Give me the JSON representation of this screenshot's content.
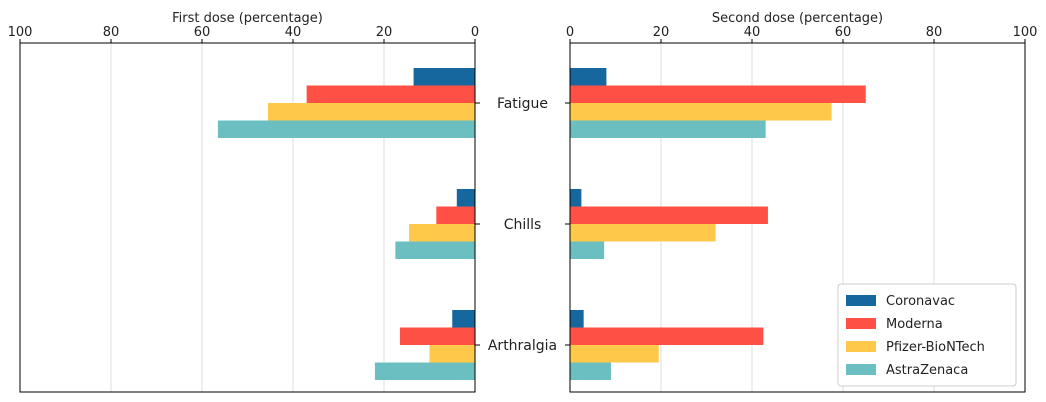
{
  "chart_data": {
    "type": "bar",
    "orientation": "horizontal",
    "categories": [
      "Fatigue",
      "Chills",
      "Arthralgia"
    ],
    "series": [
      {
        "name": "Coronavac",
        "color": "#15679e",
        "first_dose": [
          13.5,
          4.0,
          5.0
        ],
        "second_dose": [
          8.0,
          2.5,
          3.0
        ]
      },
      {
        "name": "Moderna",
        "color": "#ff5046",
        "first_dose": [
          37.0,
          8.5,
          16.5
        ],
        "second_dose": [
          65.0,
          43.5,
          42.5
        ]
      },
      {
        "name": "Pfizer-BioNTech",
        "color": "#fec94a",
        "first_dose": [
          45.5,
          14.5,
          10.0
        ],
        "second_dose": [
          57.5,
          32.0,
          19.5
        ]
      },
      {
        "name": "AstraZenaca",
        "color": "#6bbfc0",
        "first_dose": [
          56.5,
          17.5,
          22.0
        ],
        "second_dose": [
          43.0,
          7.5,
          9.0
        ]
      }
    ],
    "left_panel": {
      "title": "First dose (percentage)",
      "xlim": [
        100,
        0
      ],
      "ticks": [
        "100",
        "80",
        "60",
        "40",
        "20",
        "0"
      ],
      "tick_values": [
        100,
        80,
        60,
        40,
        20,
        0
      ]
    },
    "right_panel": {
      "title": "Second dose (percentage)",
      "xlim": [
        0,
        100
      ],
      "ticks": [
        "0",
        "20",
        "40",
        "60",
        "80",
        "100"
      ],
      "tick_values": [
        0,
        20,
        40,
        60,
        80,
        100
      ]
    },
    "grid": true,
    "legend_position": "bottom-right"
  }
}
